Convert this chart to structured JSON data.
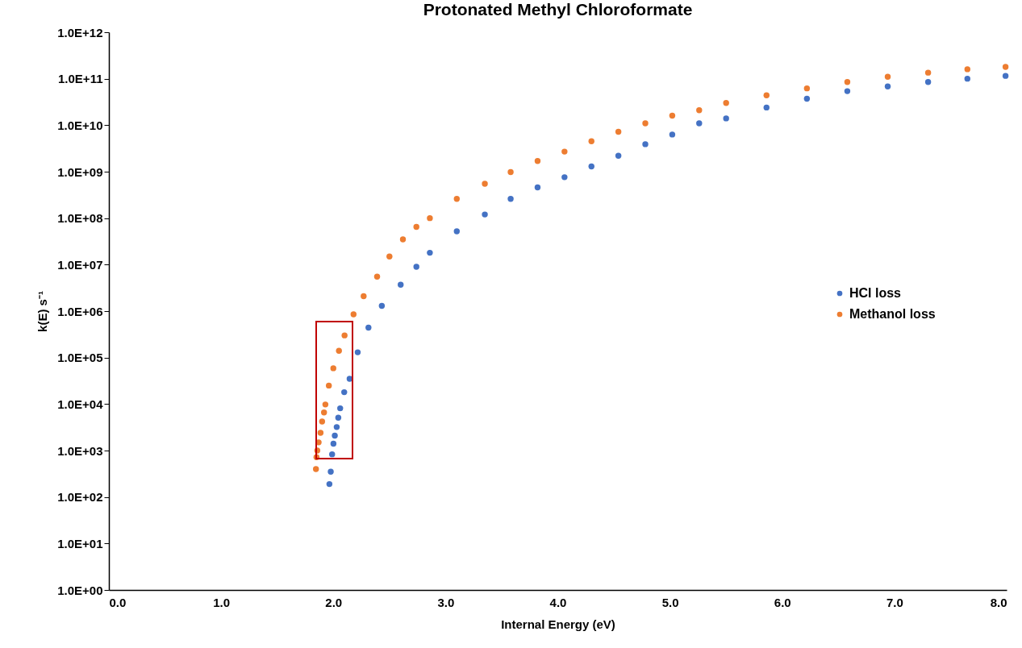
{
  "chart_data": {
    "type": "scatter",
    "title": "Protonated Methyl Chloroformate",
    "xlabel": "Internal Energy (eV)",
    "ylabel": "k(E) s⁻¹",
    "log": "y",
    "grid": false,
    "legend": "right",
    "marker": "circle",
    "xlim": [
      0,
      8
    ],
    "xticks": [
      {
        "value": 0,
        "label": "0.0"
      },
      {
        "value": 1,
        "label": "1.0"
      },
      {
        "value": 2,
        "label": "2.0"
      },
      {
        "value": 3,
        "label": "3.0"
      },
      {
        "value": 4,
        "label": "4.0"
      },
      {
        "value": 5,
        "label": "5.0"
      },
      {
        "value": 6,
        "label": "6.0"
      },
      {
        "value": 7,
        "label": "7.0"
      },
      {
        "value": 8,
        "label": "8.0"
      }
    ],
    "ylim": [
      1,
      1000000000000
    ],
    "yticks": [
      {
        "value": 1,
        "label": "1.0E+00"
      },
      {
        "value": 10,
        "label": "1.0E+01"
      },
      {
        "value": 100,
        "label": "1.0E+02"
      },
      {
        "value": 1000,
        "label": "1.0E+03"
      },
      {
        "value": 10000,
        "label": "1.0E+04"
      },
      {
        "value": 100000,
        "label": "1.0E+05"
      },
      {
        "value": 1000000,
        "label": "1.0E+06"
      },
      {
        "value": 10000000,
        "label": "1.0E+07"
      },
      {
        "value": 100000000,
        "label": "1.0E+08"
      },
      {
        "value": 1000000000,
        "label": "1.0E+09"
      },
      {
        "value": 10000000000,
        "label": "1.0E+10"
      },
      {
        "value": 100000000000,
        "label": "1.0E+11"
      },
      {
        "value": 1000000000000,
        "label": "1.0E+12"
      }
    ],
    "series": [
      {
        "name": "HCl loss",
        "color": "#4472c4",
        "x": [
          1.965,
          1.977,
          1.989,
          2.001,
          2.013,
          2.03,
          2.044,
          2.061,
          2.097,
          2.145,
          2.217,
          2.313,
          2.432,
          2.6,
          2.74,
          2.86,
          3.1,
          3.35,
          3.58,
          3.82,
          4.06,
          4.3,
          4.54,
          4.78,
          5.02,
          5.26,
          5.5,
          5.86,
          6.22,
          6.58,
          6.94,
          7.3,
          7.65,
          7.99
        ],
        "values": [
          190,
          350,
          830,
          1400,
          2100,
          3200,
          5100,
          8100,
          18000,
          35000,
          130000,
          440000,
          1300000,
          3700000,
          9000000,
          18000000,
          52000000,
          120000000,
          260000000,
          460000000,
          760000000,
          1300000000,
          2200000000,
          3900000000,
          6300000000,
          11000000000,
          14000000000,
          24000000000,
          37000000000,
          54000000000,
          68000000000,
          85000000000,
          100000000000,
          115000000000
        ]
      },
      {
        "name": "Methanol loss",
        "color": "#ed7d31",
        "x": [
          1.845,
          1.85,
          1.857,
          1.869,
          1.886,
          1.9,
          1.917,
          1.929,
          1.96,
          2.0,
          2.05,
          2.1,
          2.18,
          2.27,
          2.39,
          2.5,
          2.62,
          2.74,
          2.86,
          3.1,
          3.35,
          3.58,
          3.82,
          4.06,
          4.3,
          4.54,
          4.78,
          5.02,
          5.26,
          5.5,
          5.86,
          6.22,
          6.58,
          6.94,
          7.3,
          7.65,
          7.99
        ],
        "values": [
          400,
          720,
          1000,
          1500,
          2400,
          4200,
          6600,
          9800,
          25000,
          59000,
          140000,
          300000,
          850000,
          2100000,
          5500000,
          15000000,
          35000000,
          65000000,
          100000000,
          260000000,
          550000000,
          980000000,
          1700000000,
          2700000000,
          4500000000,
          7200000000,
          11000000000,
          16000000000,
          21000000000,
          30000000000,
          44000000000,
          62000000000,
          85000000000,
          110000000000,
          135000000000,
          160000000000,
          180000000000
        ]
      }
    ]
  }
}
